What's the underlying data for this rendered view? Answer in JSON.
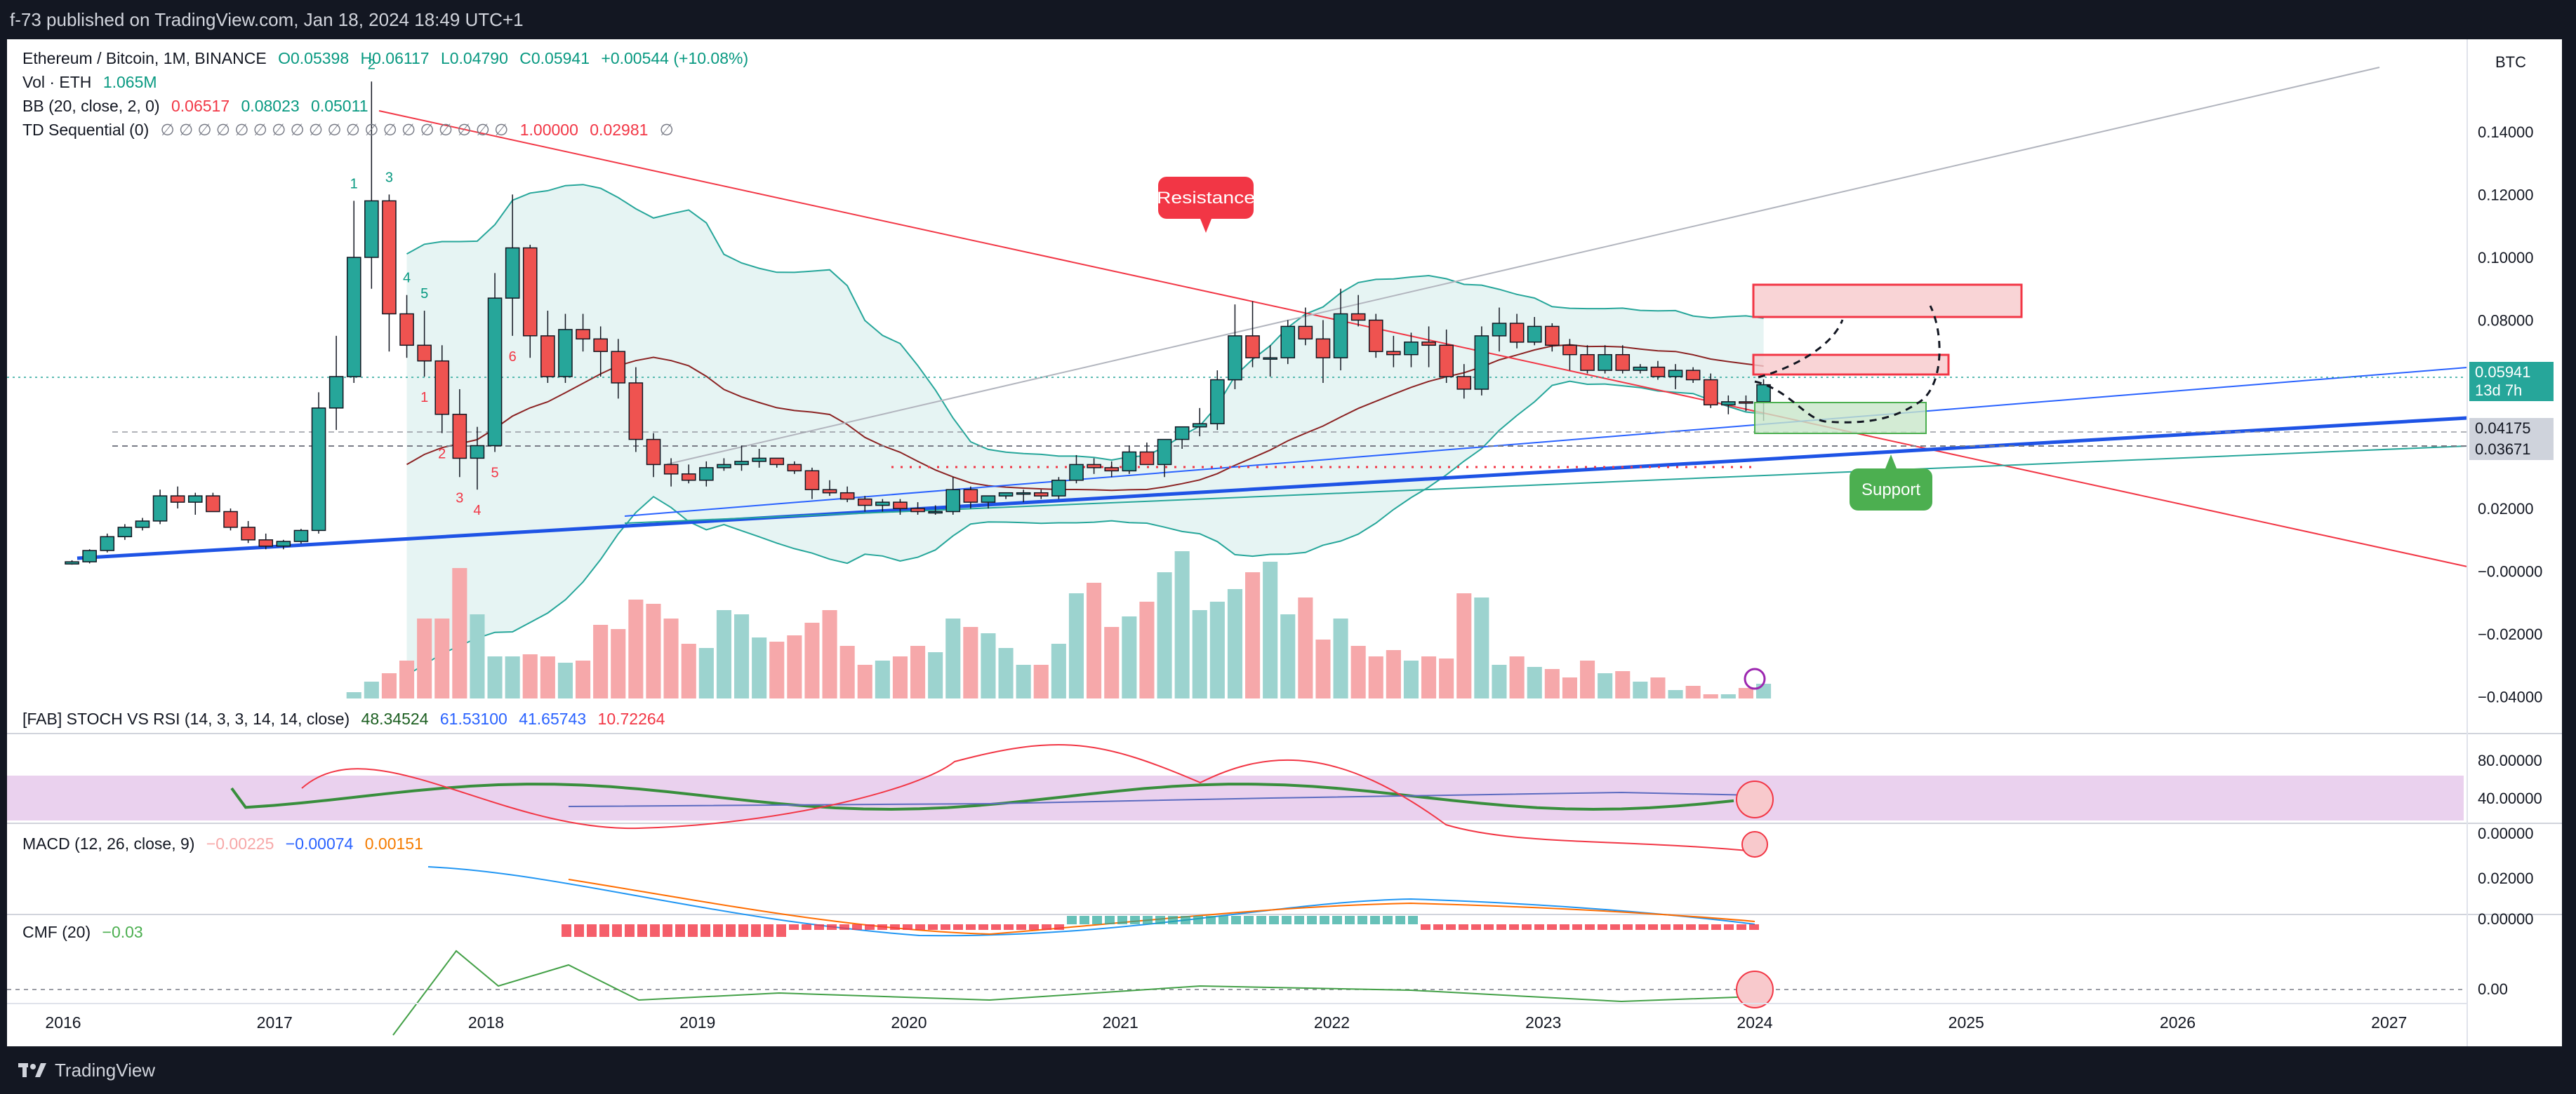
{
  "header": {
    "text": "f-73 published on TradingView.com, Jan 18, 2024 18:49 UTC+1"
  },
  "footer": {
    "brand": "TradingView"
  },
  "currency_label": "BTC",
  "legend": {
    "symbol": "Ethereum / Bitcoin, 1M, BINANCE",
    "open": "O0.05398",
    "high": "H0.06117",
    "low": "L0.04790",
    "close": "C0.05941",
    "change": "+0.00544 (+10.08%)",
    "vol_label": "Vol · ETH",
    "vol_value": "1.065M",
    "bb_label": "BB (20, close, 2, 0)",
    "bb_mid": "0.06517",
    "bb_up": "0.08023",
    "bb_low": "0.05011",
    "td_label": "TD Sequential (0)",
    "td_zeros": "∅ ∅ ∅ ∅ ∅ ∅ ∅ ∅ ∅ ∅ ∅ ∅ ∅ ∅ ∅ ∅ ∅ ∅ ∅",
    "td_v1": "1.00000",
    "td_v2": "0.02981",
    "td_v3": "∅"
  },
  "stoch": {
    "label": "[FAB] STOCH VS RSI (14, 3, 3, 14, 14, close)",
    "v1": "48.34524",
    "v2": "61.53100",
    "v3": "41.65743",
    "v4": "10.72264"
  },
  "macd": {
    "label": "MACD (12, 26, close, 9)",
    "v1": "−0.00225",
    "v2": "−0.00074",
    "v3": "0.00151"
  },
  "cmf": {
    "label": "CMF (20)",
    "v1": "−0.03"
  },
  "annotations": {
    "resistance": "Resistance",
    "support": "Support"
  },
  "price_badges": [
    {
      "label": "0.05941",
      "sub": "13d 7h",
      "color": "#26a69a"
    },
    {
      "label": "0.04175",
      "sub": "",
      "color": "#cfd3dc"
    },
    {
      "label": "0.03671",
      "sub": "",
      "color": "#cfd3dc"
    }
  ],
  "colors": {
    "up": "#26a69a",
    "down": "#ef5350",
    "up_vol": "#9cd3cf",
    "down_vol": "#f6a8aa",
    "bb_fill": "#e6f4f3"
  },
  "chart_data": {
    "type": "candlestick",
    "title": "Ethereum / Bitcoin, 1M, BINANCE",
    "ylim": [
      -0.045,
      0.165
    ],
    "y_ticks": [
      "0.14000",
      "0.12000",
      "0.10000",
      "0.08000",
      "0.06000",
      "0.04000",
      "0.02000",
      "−0.00000",
      "−0.02000",
      "−0.04000"
    ],
    "x_labels": [
      "2016",
      "2017",
      "2018",
      "2019",
      "2020",
      "2021",
      "2022",
      "2023",
      "2024",
      "2025",
      "2026",
      "2027"
    ],
    "stoch_ticks": [
      "80.00000",
      "40.00000",
      "0.00000"
    ],
    "macd_ticks": [
      "0.02000",
      "0.00000"
    ],
    "cmf_ticks": [
      "0.00"
    ],
    "candles": {
      "start_month": "2016-01",
      "ohlc": [
        [
          0.0023,
          0.0035,
          0.0021,
          0.003
        ],
        [
          0.003,
          0.007,
          0.0025,
          0.0066
        ],
        [
          0.0066,
          0.012,
          0.006,
          0.011
        ],
        [
          0.011,
          0.015,
          0.01,
          0.014
        ],
        [
          0.014,
          0.017,
          0.013,
          0.016
        ],
        [
          0.016,
          0.026,
          0.015,
          0.024
        ],
        [
          0.024,
          0.027,
          0.02,
          0.022
        ],
        [
          0.022,
          0.025,
          0.018,
          0.024
        ],
        [
          0.024,
          0.025,
          0.019,
          0.019
        ],
        [
          0.019,
          0.02,
          0.013,
          0.014
        ],
        [
          0.014,
          0.016,
          0.009,
          0.01
        ],
        [
          0.01,
          0.012,
          0.007,
          0.008
        ],
        [
          0.008,
          0.01,
          0.007,
          0.0095
        ],
        [
          0.0095,
          0.0135,
          0.0088,
          0.013
        ],
        [
          0.013,
          0.057,
          0.012,
          0.052
        ],
        [
          0.052,
          0.075,
          0.045,
          0.062
        ],
        [
          0.062,
          0.118,
          0.06,
          0.1
        ],
        [
          0.1,
          0.156,
          0.09,
          0.118
        ],
        [
          0.118,
          0.12,
          0.07,
          0.082
        ],
        [
          0.082,
          0.088,
          0.068,
          0.072
        ],
        [
          0.072,
          0.083,
          0.062,
          0.067
        ],
        [
          0.067,
          0.072,
          0.044,
          0.05
        ],
        [
          0.05,
          0.058,
          0.03,
          0.036
        ],
        [
          0.036,
          0.046,
          0.026,
          0.04
        ],
        [
          0.04,
          0.095,
          0.038,
          0.087
        ],
        [
          0.087,
          0.12,
          0.075,
          0.103
        ],
        [
          0.103,
          0.104,
          0.068,
          0.075
        ],
        [
          0.075,
          0.083,
          0.06,
          0.062
        ],
        [
          0.062,
          0.082,
          0.06,
          0.077
        ],
        [
          0.077,
          0.082,
          0.07,
          0.074
        ],
        [
          0.074,
          0.078,
          0.062,
          0.07
        ],
        [
          0.07,
          0.074,
          0.055,
          0.06
        ],
        [
          0.06,
          0.065,
          0.038,
          0.042
        ],
        [
          0.042,
          0.044,
          0.03,
          0.034
        ],
        [
          0.034,
          0.036,
          0.027,
          0.031
        ],
        [
          0.031,
          0.034,
          0.028,
          0.029
        ],
        [
          0.029,
          0.035,
          0.027,
          0.033
        ],
        [
          0.033,
          0.036,
          0.032,
          0.034
        ],
        [
          0.034,
          0.04,
          0.032,
          0.035
        ],
        [
          0.035,
          0.039,
          0.033,
          0.036
        ],
        [
          0.036,
          0.036,
          0.033,
          0.034
        ],
        [
          0.034,
          0.035,
          0.031,
          0.032
        ],
        [
          0.032,
          0.033,
          0.023,
          0.026
        ],
        [
          0.026,
          0.029,
          0.024,
          0.025
        ],
        [
          0.025,
          0.027,
          0.022,
          0.023
        ],
        [
          0.023,
          0.024,
          0.019,
          0.021
        ],
        [
          0.021,
          0.023,
          0.019,
          0.022
        ],
        [
          0.022,
          0.023,
          0.018,
          0.02
        ],
        [
          0.02,
          0.022,
          0.018,
          0.019
        ],
        [
          0.019,
          0.021,
          0.018,
          0.019
        ],
        [
          0.019,
          0.03,
          0.018,
          0.026
        ],
        [
          0.026,
          0.027,
          0.02,
          0.022
        ],
        [
          0.022,
          0.024,
          0.02,
          0.024
        ],
        [
          0.024,
          0.025,
          0.023,
          0.025
        ],
        [
          0.025,
          0.026,
          0.022,
          0.025
        ],
        [
          0.025,
          0.026,
          0.023,
          0.024
        ],
        [
          0.024,
          0.03,
          0.023,
          0.029
        ],
        [
          0.029,
          0.037,
          0.028,
          0.034
        ],
        [
          0.034,
          0.036,
          0.031,
          0.033
        ],
        [
          0.033,
          0.035,
          0.03,
          0.032
        ],
        [
          0.032,
          0.04,
          0.031,
          0.038
        ],
        [
          0.038,
          0.041,
          0.034,
          0.034
        ],
        [
          0.034,
          0.042,
          0.03,
          0.042
        ],
        [
          0.042,
          0.046,
          0.039,
          0.046
        ],
        [
          0.046,
          0.052,
          0.043,
          0.047
        ],
        [
          0.047,
          0.064,
          0.045,
          0.061
        ],
        [
          0.061,
          0.085,
          0.058,
          0.075
        ],
        [
          0.075,
          0.086,
          0.065,
          0.068
        ],
        [
          0.068,
          0.072,
          0.062,
          0.068
        ],
        [
          0.068,
          0.08,
          0.066,
          0.078
        ],
        [
          0.078,
          0.084,
          0.072,
          0.074
        ],
        [
          0.074,
          0.08,
          0.06,
          0.068
        ],
        [
          0.068,
          0.09,
          0.064,
          0.082
        ],
        [
          0.082,
          0.088,
          0.078,
          0.08
        ],
        [
          0.08,
          0.082,
          0.068,
          0.07
        ],
        [
          0.07,
          0.075,
          0.065,
          0.069
        ],
        [
          0.069,
          0.076,
          0.065,
          0.073
        ],
        [
          0.073,
          0.078,
          0.065,
          0.072
        ],
        [
          0.072,
          0.077,
          0.06,
          0.062
        ],
        [
          0.062,
          0.066,
          0.055,
          0.058
        ],
        [
          0.058,
          0.078,
          0.056,
          0.075
        ],
        [
          0.075,
          0.084,
          0.07,
          0.079
        ],
        [
          0.079,
          0.082,
          0.071,
          0.073
        ],
        [
          0.073,
          0.081,
          0.072,
          0.078
        ],
        [
          0.078,
          0.079,
          0.07,
          0.072
        ],
        [
          0.072,
          0.074,
          0.064,
          0.069
        ],
        [
          0.069,
          0.072,
          0.063,
          0.064
        ],
        [
          0.064,
          0.072,
          0.063,
          0.069
        ],
        [
          0.069,
          0.072,
          0.063,
          0.064
        ],
        [
          0.064,
          0.066,
          0.063,
          0.065
        ],
        [
          0.065,
          0.067,
          0.061,
          0.062
        ],
        [
          0.062,
          0.066,
          0.058,
          0.064
        ],
        [
          0.064,
          0.065,
          0.06,
          0.061
        ],
        [
          0.061,
          0.063,
          0.052,
          0.053
        ],
        [
          0.053,
          0.056,
          0.05,
          0.054
        ],
        [
          0.054,
          0.056,
          0.051,
          0.05398
        ],
        [
          0.05398,
          0.06117,
          0.0479,
          0.05941
        ]
      ]
    },
    "volume_rel": [
      0,
      0,
      0,
      0,
      0,
      0,
      0,
      0,
      0,
      0,
      0,
      0,
      0,
      0,
      0,
      0,
      0.03,
      0.08,
      0.12,
      0.18,
      0.38,
      0.38,
      0.62,
      0.4,
      0.2,
      0.2,
      0.21,
      0.2,
      0.17,
      0.18,
      0.35,
      0.33,
      0.47,
      0.45,
      0.38,
      0.26,
      0.24,
      0.42,
      0.4,
      0.29,
      0.27,
      0.3,
      0.36,
      0.42,
      0.25,
      0.16,
      0.18,
      0.2,
      0.25,
      0.22,
      0.38,
      0.34,
      0.31,
      0.24,
      0.16,
      0.16,
      0.26,
      0.5,
      0.55,
      0.34,
      0.39,
      0.46,
      0.6,
      0.7,
      0.42,
      0.46,
      0.52,
      0.6,
      0.65,
      0.4,
      0.48,
      0.28,
      0.38,
      0.25,
      0.2,
      0.23,
      0.18,
      0.2,
      0.19,
      0.5,
      0.48,
      0.16,
      0.2,
      0.15,
      0.14,
      0.1,
      0.18,
      0.12,
      0.13,
      0.08,
      0.1,
      0.04,
      0.06,
      0.02,
      0.02,
      0.05,
      0.07
    ]
  }
}
